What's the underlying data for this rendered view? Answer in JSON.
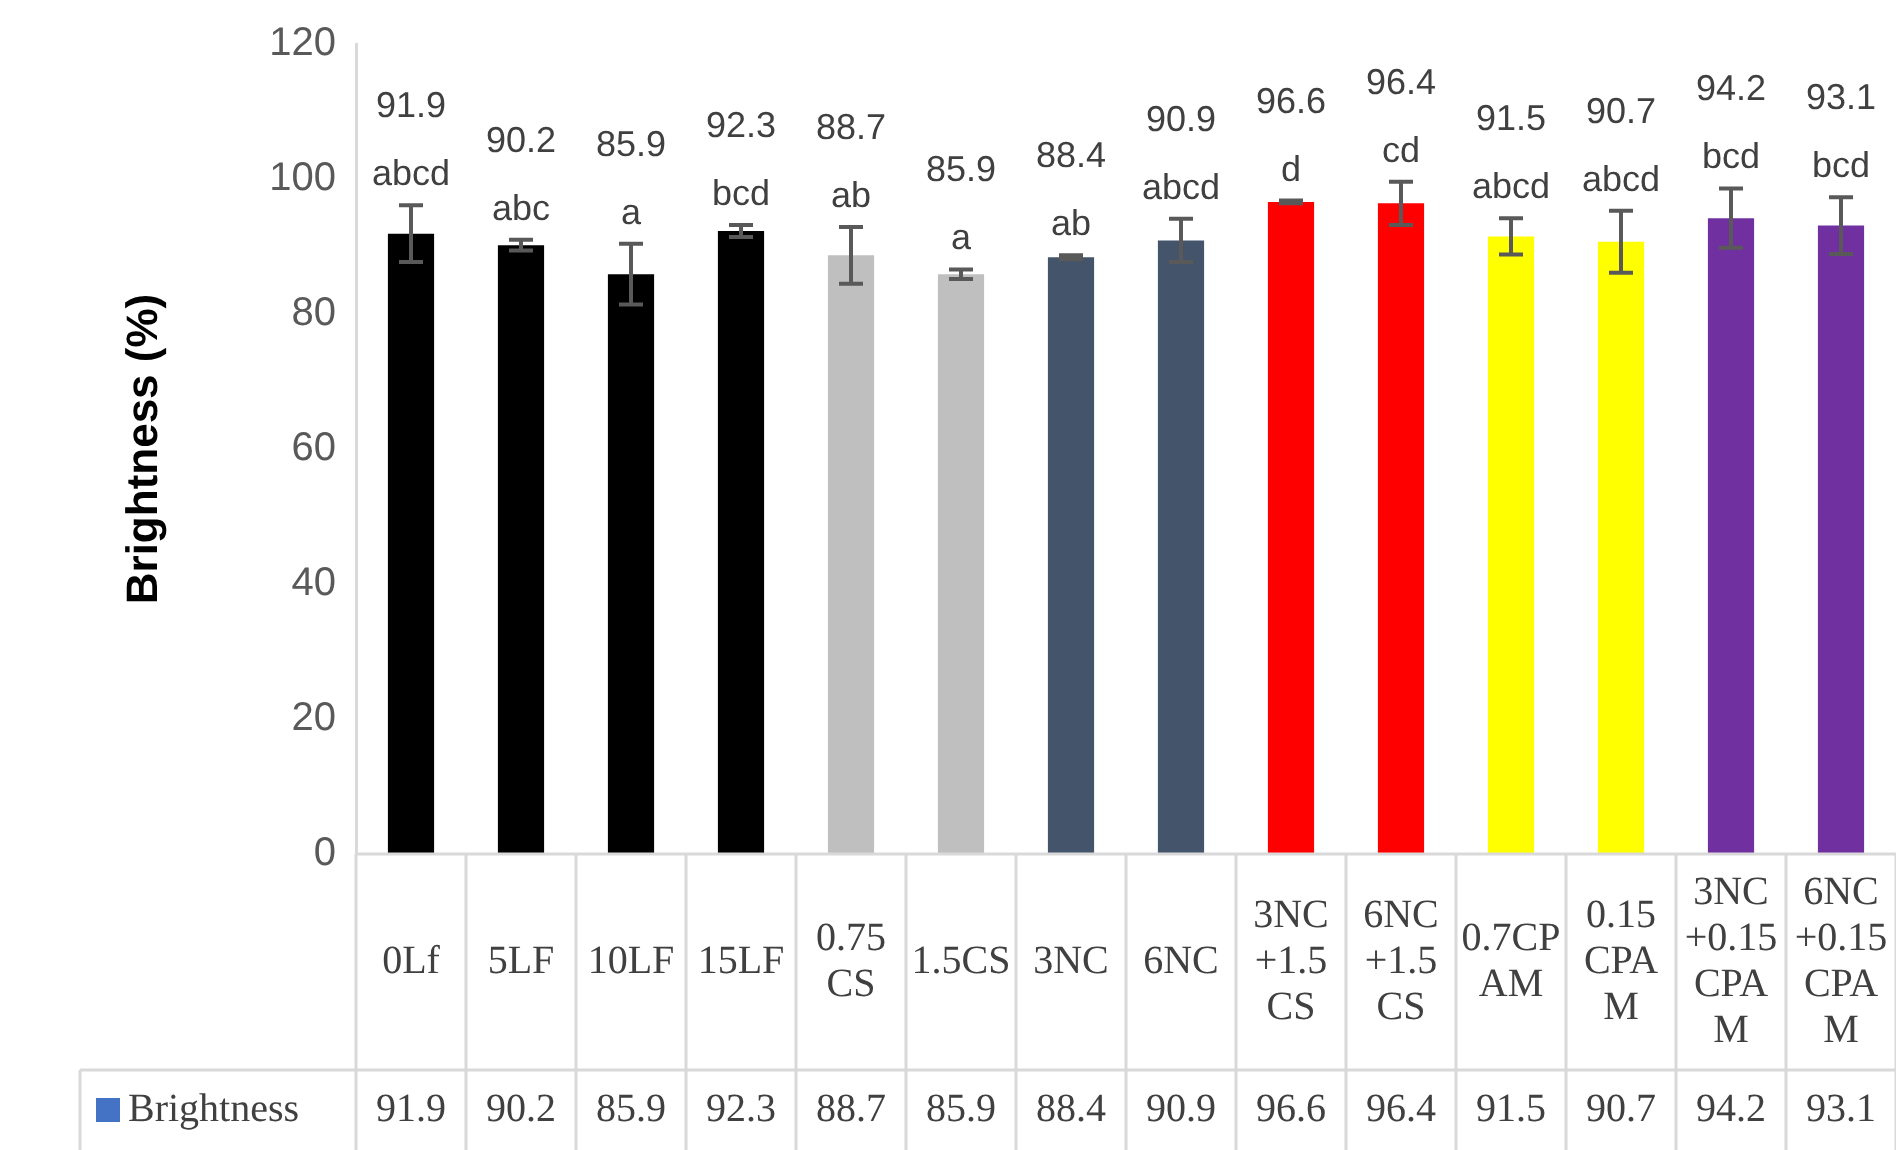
{
  "chart_data": {
    "type": "bar",
    "ylabel": "Brightness (%)",
    "categories": [
      "0Lf",
      "5LF",
      "10LF",
      "15LF",
      "0.75 CS",
      "1.5CS",
      "3NC",
      "6NC",
      "3NC +1.5 CS",
      "6NC +1.5 CS",
      "0.7CPAM",
      "0.15 CPAM",
      "3NC +0.15CPAM",
      "6NC +0.15CPAM"
    ],
    "series": [
      {
        "name": "Brightness",
        "color": "#4472c4",
        "colors": [
          "#000000",
          "#000000",
          "#000000",
          "#000000",
          "#bfbfbf",
          "#bfbfbf",
          "#44546a",
          "#44546a",
          "#ff0000",
          "#ff0000",
          "#ffff00",
          "#ffff00",
          "#7030a0",
          "#7030a0"
        ],
        "values": [
          91.9,
          90.2,
          85.9,
          92.3,
          88.7,
          85.9,
          88.4,
          90.9,
          96.6,
          96.4,
          91.5,
          90.7,
          94.2,
          93.1
        ],
        "errors": [
          4.2,
          0.8,
          4.5,
          0.9,
          4.2,
          0.7,
          0.3,
          3.2,
          0.2,
          3.2,
          2.7,
          4.6,
          4.4,
          4.2
        ],
        "value_labels": [
          "91.9",
          "90.2",
          "85.9",
          "92.3",
          "88.7",
          "85.9",
          "88.4",
          "90.9",
          "96.6",
          "96.4",
          "91.5",
          "90.7",
          "94.2",
          "93.1"
        ]
      }
    ],
    "annotations": [
      {
        "text": "abcd",
        "x": "0Lf",
        "y": 91.9
      },
      {
        "text": "abc",
        "x": "5LF",
        "y": 90.2
      },
      {
        "text": "a",
        "x": "10LF",
        "y": 85.9
      },
      {
        "text": "bcd",
        "x": "15LF",
        "y": 92.3
      },
      {
        "text": "ab",
        "x": "0.75 CS",
        "y": 88.7
      },
      {
        "text": "a",
        "x": "1.5CS",
        "y": 85.9
      },
      {
        "text": "ab",
        "x": "3NC",
        "y": 88.4
      },
      {
        "text": "abcd",
        "x": "6NC",
        "y": 90.9
      },
      {
        "text": "d",
        "x": "3NC +1.5 CS",
        "y": 96.6
      },
      {
        "text": "cd",
        "x": "6NC +1.5 CS",
        "y": 96.4
      },
      {
        "text": "abcd",
        "x": "0.7CPAM",
        "y": 91.5
      },
      {
        "text": "abcd",
        "x": "0.15 CPAM",
        "y": 90.7
      },
      {
        "text": "bcd",
        "x": "3NC +0.15CPAM",
        "y": 94.2
      },
      {
        "text": "bcd",
        "x": "6NC +0.15CPAM",
        "y": 93.1
      }
    ],
    "ylim": [
      0,
      120
    ],
    "yticks": [
      0,
      20,
      40,
      60,
      80,
      100,
      120
    ],
    "grid": false,
    "data_labels": true
  }
}
